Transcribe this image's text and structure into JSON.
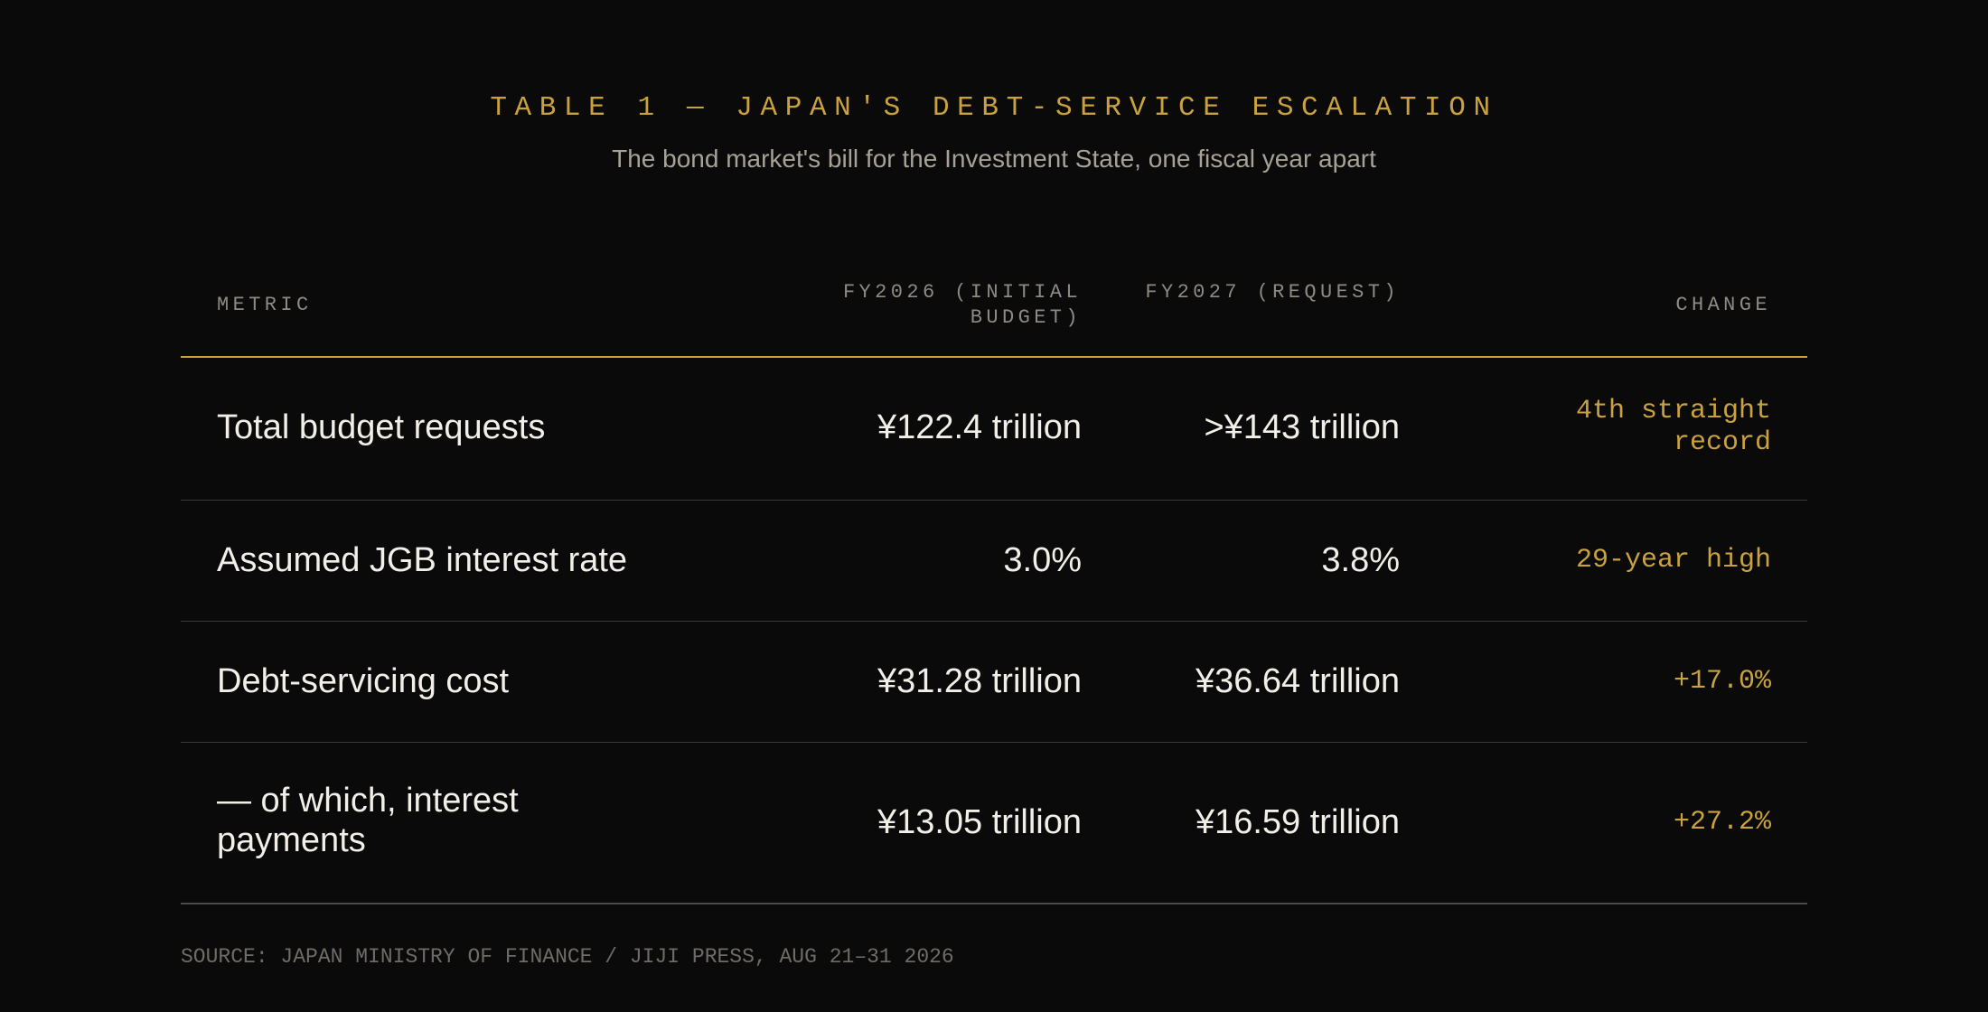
{
  "title": "TABLE 1 — JAPAN'S DEBT-SERVICE ESCALATION",
  "subtitle": "The bond market's bill for the Investment State, one fiscal year apart",
  "table": {
    "headers": {
      "metric": "METRIC",
      "fy2026": "FY2026 (INITIAL BUDGET)",
      "fy2027": "FY2027 (REQUEST)",
      "change": "CHANGE"
    },
    "rows": [
      {
        "metric": "Total budget requests",
        "fy2026": "¥122.4 trillion",
        "fy2027": ">¥143 trillion",
        "change": "4th straight record"
      },
      {
        "metric": "Assumed JGB interest rate",
        "fy2026": "3.0%",
        "fy2027": "3.8%",
        "change": "29-year high"
      },
      {
        "metric": "Debt-servicing cost",
        "fy2026": "¥31.28 trillion",
        "fy2027": "¥36.64 trillion",
        "change": "+17.0%"
      },
      {
        "metric": "— of which, interest payments",
        "fy2026": "¥13.05 trillion",
        "fy2027": "¥16.59 trillion",
        "change": "+27.2%"
      }
    ]
  },
  "source": "SOURCE: JAPAN MINISTRY OF FINANCE / JIJI PRESS, AUG 21–31 2026",
  "colors": {
    "background": "#0a0a0a",
    "accent": "#c9a23f",
    "text": "#f2efe8",
    "muted": "#8e8a83"
  }
}
